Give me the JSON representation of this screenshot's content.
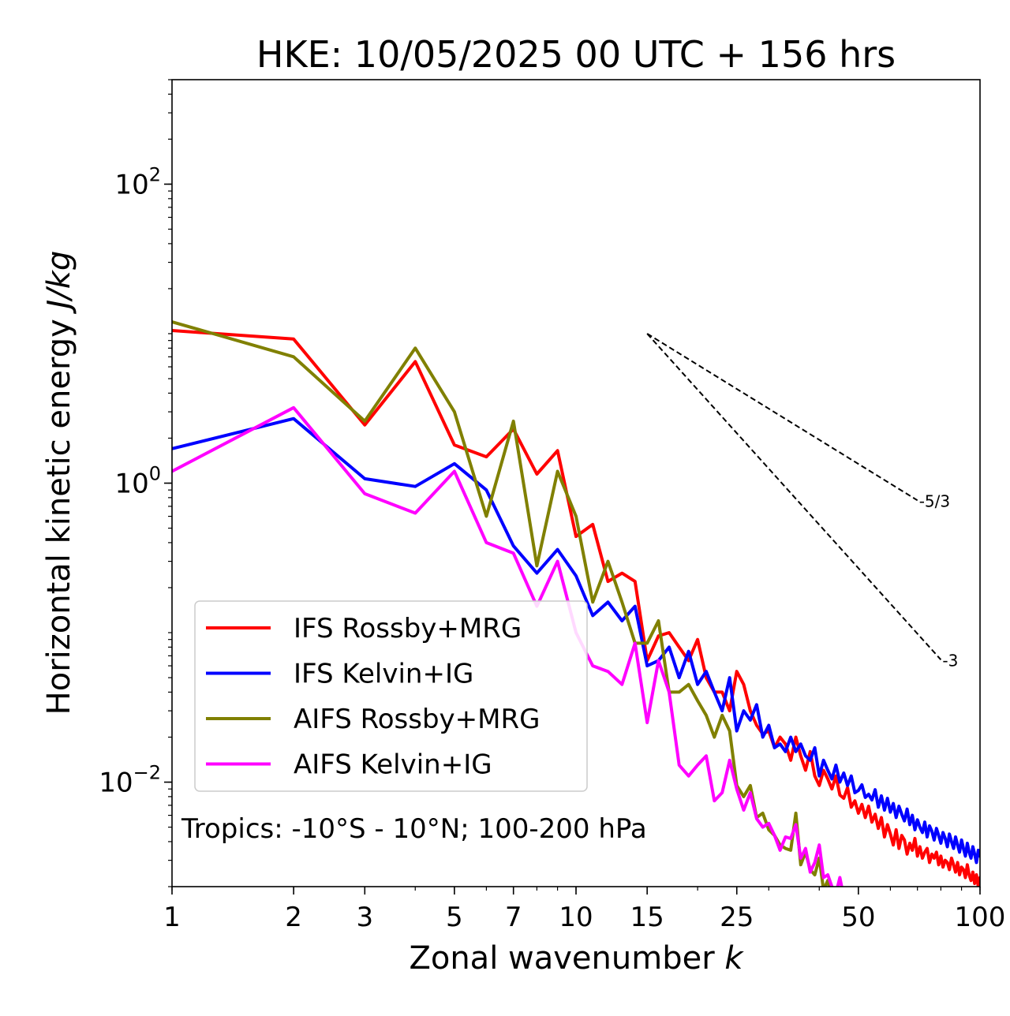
{
  "chart_data": {
    "type": "line",
    "title": "HKE: 10/05/2025 00 UTC + 156 hrs",
    "xlabel": "Zonal wavenumber",
    "xlabel_symbol": "k",
    "ylabel": "Horizontal kinetic energy",
    "ylabel_units": "J/kg",
    "x_scale": "log",
    "y_scale": "log",
    "xlim": [
      1,
      100
    ],
    "ylim": [
      0.002,
      500
    ],
    "x_ticks": [
      1,
      2,
      3,
      5,
      7,
      10,
      15,
      25,
      50,
      100
    ],
    "x_tick_labels": [
      "1",
      "2",
      "3",
      "5",
      "7",
      "10",
      "15",
      "25",
      "50",
      "100"
    ],
    "y_ticks": [
      0.01,
      1,
      100
    ],
    "y_tick_labels": [
      {
        "base": "10",
        "exp": "−2"
      },
      {
        "base": "10",
        "exp": "0"
      },
      {
        "base": "10",
        "exp": "2"
      }
    ],
    "grid": false,
    "legend_position": "lower-left",
    "annotation": "Tropics: -10°S - 10°N; 100-200 hPa",
    "reference_lines": [
      {
        "label": "-5/3",
        "slope": -1.6667,
        "x_start": 15,
        "y_start": 10,
        "x_end": 70
      },
      {
        "label": "-3",
        "slope": -3,
        "x_start": 15,
        "y_start": 10,
        "x_end": 80
      }
    ],
    "series": [
      {
        "name": "IFS Rossby+MRG",
        "color": "#ff0000",
        "x": [
          1,
          2,
          3,
          4,
          5,
          6,
          7,
          8,
          9,
          10,
          11,
          12,
          13,
          14,
          15,
          16,
          17,
          18,
          19,
          20,
          21,
          22,
          23,
          24,
          25,
          26,
          27,
          28,
          29,
          30,
          31,
          32,
          33,
          34,
          35,
          36,
          37,
          38,
          39,
          40,
          41,
          42,
          43,
          44,
          45,
          46,
          47,
          48,
          49,
          50,
          51,
          52,
          53,
          54,
          55,
          56,
          57,
          58,
          59,
          60,
          61,
          62,
          63,
          64,
          65,
          66,
          67,
          68,
          69,
          70,
          71,
          72,
          73,
          74,
          75,
          76,
          77,
          78,
          79,
          80,
          81,
          82,
          83,
          84,
          85,
          86,
          87,
          88,
          89,
          90,
          91,
          92,
          93,
          94,
          95,
          96,
          97,
          98,
          99,
          100
        ],
        "y": [
          10.5,
          9.2,
          2.45,
          6.5,
          1.8,
          1.5,
          2.3,
          1.15,
          1.65,
          0.44,
          0.53,
          0.22,
          0.25,
          0.22,
          0.065,
          0.095,
          0.1,
          0.08,
          0.065,
          0.09,
          0.05,
          0.04,
          0.04,
          0.03,
          0.055,
          0.045,
          0.03,
          0.024,
          0.021,
          0.022,
          0.017,
          0.02,
          0.018,
          0.014,
          0.02,
          0.015,
          0.012,
          0.016,
          0.011,
          0.0095,
          0.012,
          0.0105,
          0.009,
          0.011,
          0.0082,
          0.0078,
          0.0092,
          0.0068,
          0.0075,
          0.0062,
          0.0071,
          0.0058,
          0.0069,
          0.0054,
          0.0061,
          0.0049,
          0.0058,
          0.0043,
          0.0052,
          0.0045,
          0.0038,
          0.0048,
          0.0036,
          0.0044,
          0.0041,
          0.0033,
          0.0039,
          0.0035,
          0.0042,
          0.0032,
          0.0037,
          0.0031,
          0.0034,
          0.0036,
          0.0029,
          0.0033,
          0.0031,
          0.0034,
          0.0028,
          0.0032,
          0.0027,
          0.003,
          0.0029,
          0.0026,
          0.0031,
          0.0028,
          0.0025,
          0.0029,
          0.0024,
          0.0027,
          0.0026,
          0.0023,
          0.0028,
          0.0024,
          0.0022,
          0.0025,
          0.0021,
          0.0024,
          0.002,
          0.0023
        ]
      },
      {
        "name": "IFS Kelvin+IG",
        "color": "#0000ff",
        "x": [
          1,
          2,
          3,
          4,
          5,
          6,
          7,
          8,
          9,
          10,
          11,
          12,
          13,
          14,
          15,
          16,
          17,
          18,
          19,
          20,
          21,
          22,
          23,
          24,
          25,
          26,
          27,
          28,
          29,
          30,
          31,
          32,
          33,
          34,
          35,
          36,
          37,
          38,
          39,
          40,
          41,
          42,
          43,
          44,
          45,
          46,
          47,
          48,
          49,
          50,
          51,
          52,
          53,
          54,
          55,
          56,
          57,
          58,
          59,
          60,
          61,
          62,
          63,
          64,
          65,
          66,
          67,
          68,
          69,
          70,
          71,
          72,
          73,
          74,
          75,
          76,
          77,
          78,
          79,
          80,
          81,
          82,
          83,
          84,
          85,
          86,
          87,
          88,
          89,
          90,
          91,
          92,
          93,
          94,
          95,
          96,
          97,
          98,
          99,
          100
        ],
        "y": [
          1.7,
          2.7,
          1.07,
          0.95,
          1.35,
          0.9,
          0.38,
          0.25,
          0.36,
          0.24,
          0.13,
          0.16,
          0.12,
          0.15,
          0.06,
          0.065,
          0.08,
          0.05,
          0.075,
          0.045,
          0.055,
          0.04,
          0.03,
          0.05,
          0.022,
          0.03,
          0.026,
          0.033,
          0.02,
          0.024,
          0.017,
          0.018,
          0.016,
          0.02,
          0.016,
          0.018,
          0.015,
          0.014,
          0.017,
          0.011,
          0.014,
          0.012,
          0.0105,
          0.013,
          0.01,
          0.0115,
          0.0095,
          0.011,
          0.0085,
          0.0088,
          0.0096,
          0.0079,
          0.0083,
          0.0076,
          0.0089,
          0.0068,
          0.0081,
          0.0065,
          0.0078,
          0.0063,
          0.0072,
          0.0058,
          0.0069,
          0.0061,
          0.0055,
          0.0066,
          0.0052,
          0.006,
          0.0048,
          0.0056,
          0.005,
          0.0046,
          0.0054,
          0.0043,
          0.0051,
          0.0047,
          0.0041,
          0.0049,
          0.0044,
          0.0039,
          0.0046,
          0.0042,
          0.0037,
          0.0045,
          0.004,
          0.0036,
          0.0043,
          0.0038,
          0.0034,
          0.0041,
          0.0036,
          0.0032,
          0.0039,
          0.0034,
          0.0031,
          0.0037,
          0.0033,
          0.0029,
          0.0035,
          0.0032
        ]
      },
      {
        "name": "AIFS Rossby+MRG",
        "color": "#808000",
        "x": [
          1,
          2,
          3,
          4,
          5,
          6,
          7,
          8,
          9,
          10,
          11,
          12,
          13,
          14,
          15,
          16,
          17,
          18,
          19,
          20,
          21,
          22,
          23,
          24,
          25,
          26,
          27,
          28,
          29,
          30,
          31,
          32,
          33,
          34,
          35,
          36,
          37,
          38,
          39,
          40,
          41,
          42,
          43,
          44,
          45,
          46,
          47,
          48,
          49,
          50
        ],
        "y": [
          12,
          7,
          2.6,
          8,
          3,
          0.6,
          2.6,
          0.28,
          1.2,
          0.6,
          0.16,
          0.3,
          0.16,
          0.085,
          0.085,
          0.12,
          0.04,
          0.04,
          0.045,
          0.035,
          0.028,
          0.02,
          0.028,
          0.022,
          0.0095,
          0.008,
          0.0095,
          0.0058,
          0.0062,
          0.0048,
          0.0044,
          0.0038,
          0.0036,
          0.0035,
          0.0062,
          0.0028,
          0.0034,
          0.0026,
          0.0024,
          0.0031,
          0.0019,
          0.0022,
          0.0017,
          0.0015,
          0.0019,
          0.0014,
          0.0013,
          0.0016,
          0.0012,
          0.0011
        ]
      },
      {
        "name": "AIFS Kelvin+IG",
        "color": "#ff00ff",
        "x": [
          1,
          2,
          3,
          4,
          5,
          6,
          7,
          8,
          9,
          10,
          11,
          12,
          13,
          14,
          15,
          16,
          17,
          18,
          19,
          20,
          21,
          22,
          23,
          24,
          25,
          26,
          27,
          28,
          29,
          30,
          31,
          32,
          33,
          34,
          35,
          36,
          37,
          38,
          39,
          40,
          41,
          42,
          43,
          44,
          45,
          46,
          47,
          48,
          49,
          50,
          51,
          52,
          53,
          54,
          55
        ],
        "y": [
          1.2,
          3.2,
          0.85,
          0.63,
          1.2,
          0.4,
          0.34,
          0.15,
          0.3,
          0.1,
          0.06,
          0.055,
          0.045,
          0.085,
          0.025,
          0.065,
          0.04,
          0.013,
          0.011,
          0.013,
          0.015,
          0.0075,
          0.0085,
          0.014,
          0.009,
          0.0065,
          0.0085,
          0.0057,
          0.005,
          0.0053,
          0.0044,
          0.0035,
          0.0043,
          0.0042,
          0.0052,
          0.0031,
          0.0036,
          0.0025,
          0.0029,
          0.0038,
          0.0023,
          0.0024,
          0.002,
          0.0018,
          0.0023,
          0.0017,
          0.0016,
          0.0019,
          0.0015,
          0.0018,
          0.0014,
          0.0015,
          0.0013,
          0.0014,
          0.0012
        ]
      }
    ]
  }
}
